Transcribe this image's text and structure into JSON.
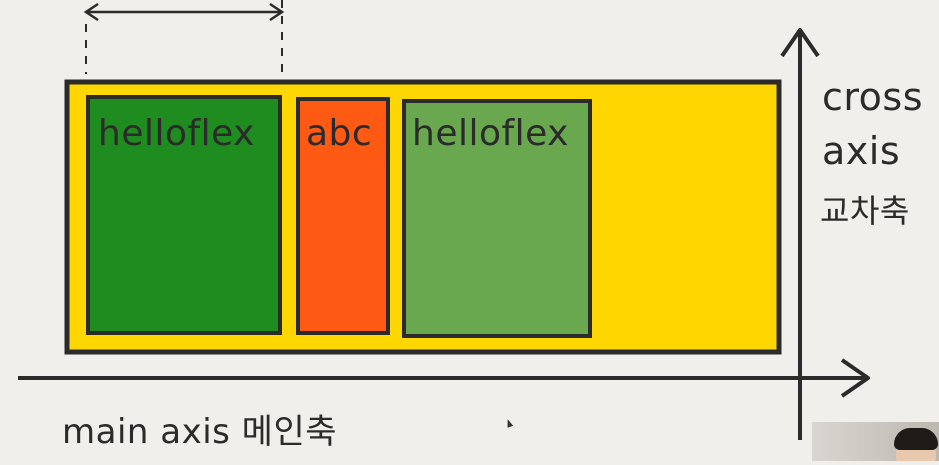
{
  "boxes": [
    {
      "label": "helloflex",
      "color": "#1f8c1f"
    },
    {
      "label": "abc",
      "color": "#ff5a14"
    },
    {
      "label": "helloflex",
      "color": "#6aa84f"
    }
  ],
  "container": {
    "color": "#ffd700"
  },
  "axes": {
    "cross_line1": "cross",
    "cross_line2": "axis",
    "cross_line3": "교차축",
    "main_label": "main axis 메인축"
  },
  "colors": {
    "background": "#f1efeb",
    "stroke": "#2b2b2b"
  }
}
